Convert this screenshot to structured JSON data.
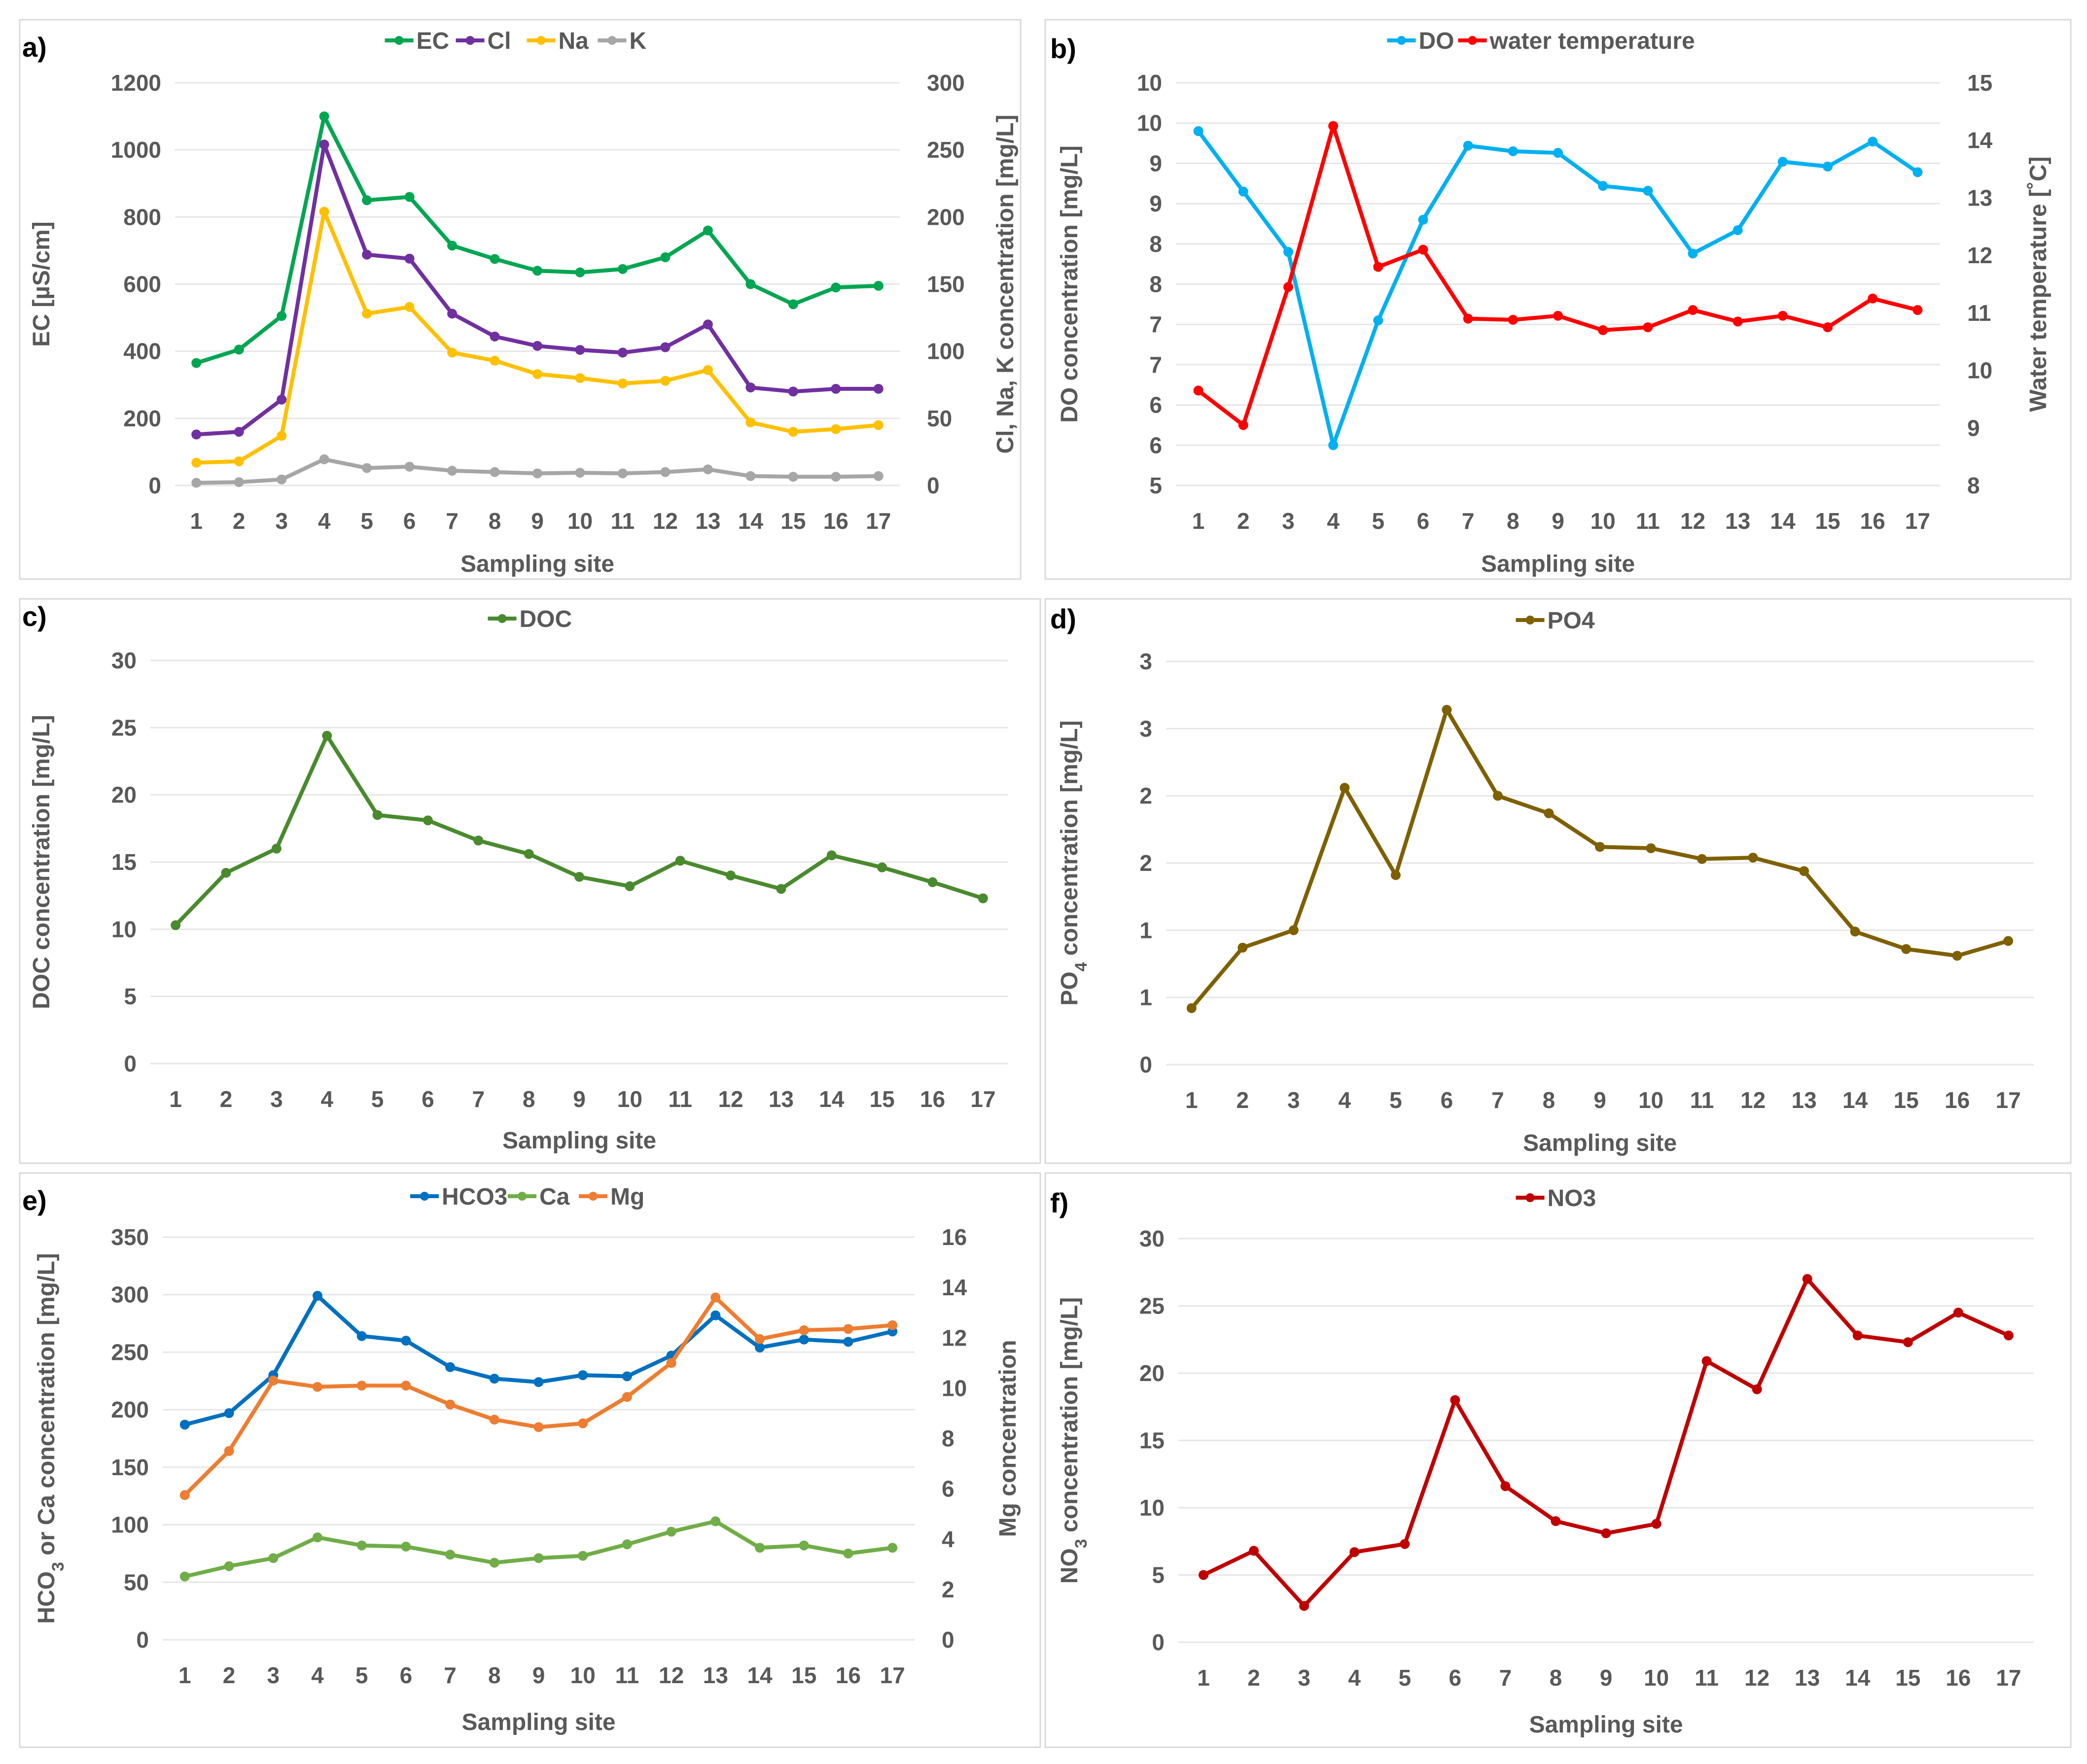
{
  "chart_data": [
    {
      "id": "a",
      "panel_label": "a)",
      "type": "line",
      "xlabel": "Sampling site",
      "ylabel": "EC [µS/cm]",
      "ylim": [
        0,
        1200
      ],
      "yticks": [
        0,
        200,
        400,
        600,
        800,
        1000,
        1200
      ],
      "y2label": "Cl, Na, K concentration [mg/L]",
      "y2lim": [
        0,
        300
      ],
      "y2ticks": [
        0,
        50,
        100,
        150,
        200,
        250,
        300
      ],
      "x": [
        1,
        2,
        3,
        4,
        5,
        6,
        7,
        8,
        9,
        10,
        11,
        12,
        13,
        14,
        15,
        16,
        17
      ],
      "series": [
        {
          "name": "EC",
          "color": "#00a651",
          "axis": "left",
          "values": [
            365,
            405,
            505,
            1100,
            850,
            860,
            715,
            675,
            640,
            635,
            645,
            680,
            760,
            600,
            540,
            590,
            595
          ]
        },
        {
          "name": "Cl",
          "color": "#7030a0",
          "axis": "right",
          "values": [
            38,
            40,
            64,
            254,
            172,
            169,
            128,
            111,
            104,
            101,
            99,
            103,
            120,
            73,
            70,
            72,
            72
          ]
        },
        {
          "name": "Na",
          "color": "#ffc000",
          "axis": "right",
          "values": [
            17,
            18,
            37,
            204,
            128,
            133,
            99,
            93,
            83,
            80,
            76,
            78,
            86,
            47,
            40,
            42,
            45
          ]
        },
        {
          "name": "K",
          "color": "#a6a6a6",
          "axis": "right",
          "values": [
            2,
            2.5,
            4.5,
            19.5,
            13,
            14,
            11,
            10,
            9,
            9.5,
            9,
            10,
            12,
            7,
            6.5,
            6.5,
            7
          ]
        }
      ]
    },
    {
      "id": "b",
      "panel_label": "b)",
      "type": "line",
      "xlabel": "Sampling site",
      "ylabel": "DO concentration [mg/L]",
      "ylim": [
        5,
        10
      ],
      "yticks": [
        5,
        5.5,
        6,
        6.5,
        7,
        7.5,
        8,
        8.5,
        9,
        9.5,
        10
      ],
      "ytick_labels": [
        "5",
        "6",
        "6",
        "7",
        "7",
        "8",
        "8",
        "9",
        "9",
        "10",
        "10"
      ],
      "y2label": "Water temperature [˚C]",
      "y2lim": [
        8,
        15
      ],
      "y2ticks": [
        8,
        9,
        10,
        11,
        12,
        13,
        14,
        15
      ],
      "x": [
        1,
        2,
        3,
        4,
        5,
        6,
        7,
        8,
        9,
        10,
        11,
        12,
        13,
        14,
        15,
        16,
        17
      ],
      "series": [
        {
          "name": "DO",
          "color": "#00b0f0",
          "axis": "left",
          "values": [
            9.4,
            8.65,
            7.9,
            5.5,
            7.05,
            8.3,
            9.22,
            9.15,
            9.13,
            8.72,
            8.66,
            7.88,
            8.17,
            9.02,
            8.96,
            9.27,
            8.89
          ]
        },
        {
          "name": "water temperature",
          "color": "#ff0000",
          "axis": "right",
          "values": [
            9.65,
            9.05,
            11.45,
            14.25,
            11.8,
            12.1,
            10.9,
            10.88,
            10.95,
            10.7,
            10.75,
            11.05,
            10.85,
            10.95,
            10.75,
            11.25,
            11.05
          ]
        }
      ]
    },
    {
      "id": "c",
      "panel_label": "c)",
      "type": "line",
      "xlabel": "Sampling site",
      "ylabel": "DOC concentration [mg/L]",
      "ylim": [
        0,
        30
      ],
      "yticks": [
        0,
        5,
        10,
        15,
        20,
        25,
        30
      ],
      "x": [
        1,
        2,
        3,
        4,
        5,
        6,
        7,
        8,
        9,
        10,
        11,
        12,
        13,
        14,
        15,
        16,
        17
      ],
      "series": [
        {
          "name": "DOC",
          "color": "#4a8a2f",
          "axis": "left",
          "values": [
            10.3,
            14.2,
            16,
            24.4,
            18.5,
            18.1,
            16.6,
            15.6,
            13.9,
            13.2,
            15.1,
            14,
            13,
            15.5,
            14.6,
            13.5,
            12.3
          ]
        }
      ]
    },
    {
      "id": "d",
      "panel_label": "d)",
      "type": "line",
      "xlabel": "Sampling site",
      "ylabel_main": "PO",
      "ylabel_sub": "4",
      "ylabel_rest": " concentration [mg/L]",
      "ylim": [
        0,
        3
      ],
      "yticks": [
        0,
        0.5,
        1,
        1.5,
        2,
        2.5,
        3
      ],
      "ytick_labels": [
        "0",
        "1",
        "1",
        "2",
        "2",
        "3",
        "3"
      ],
      "x": [
        1,
        2,
        3,
        4,
        5,
        6,
        7,
        8,
        9,
        10,
        11,
        12,
        13,
        14,
        15,
        16,
        17
      ],
      "series": [
        {
          "name": "PO4",
          "color": "#7f6000",
          "axis": "left",
          "values": [
            0.42,
            0.87,
            1.0,
            2.06,
            1.41,
            2.64,
            2.0,
            1.87,
            1.62,
            1.61,
            1.53,
            1.54,
            1.44,
            0.99,
            0.86,
            0.81,
            0.92
          ]
        }
      ]
    },
    {
      "id": "e",
      "panel_label": "e)",
      "type": "line",
      "xlabel": "Sampling site",
      "ylabel_main": "HCO",
      "ylabel_sub": "3",
      "ylabel_rest": " or Ca concentration [mg/L]",
      "ylim": [
        0,
        350
      ],
      "yticks": [
        0,
        50,
        100,
        150,
        200,
        250,
        300,
        350
      ],
      "y2label": "Mg concentration",
      "y2lim": [
        0,
        16
      ],
      "y2ticks": [
        0,
        2,
        4,
        6,
        8,
        10,
        12,
        14,
        16
      ],
      "x": [
        1,
        2,
        3,
        4,
        5,
        6,
        7,
        8,
        9,
        10,
        11,
        12,
        13,
        14,
        15,
        16,
        17
      ],
      "series": [
        {
          "name": "HCO3",
          "color": "#0070c0",
          "axis": "left",
          "values": [
            187,
            197,
            230,
            299,
            264,
            260,
            237,
            227,
            224,
            230,
            229,
            247,
            282,
            254,
            261,
            259,
            268
          ]
        },
        {
          "name": "Ca",
          "color": "#70ad47",
          "axis": "left",
          "values": [
            55,
            64,
            71,
            89,
            82,
            81,
            74,
            67,
            71,
            73,
            83,
            94,
            103,
            80,
            82,
            75,
            80
          ]
        },
        {
          "name": "Mg",
          "color": "#ed7d31",
          "axis": "right",
          "values": [
            5.75,
            7.5,
            10.3,
            10.05,
            10.1,
            10.1,
            9.35,
            8.75,
            8.45,
            8.6,
            9.65,
            11,
            13.6,
            11.95,
            12.3,
            12.35,
            12.5
          ]
        }
      ]
    },
    {
      "id": "f",
      "panel_label": "f)",
      "type": "line",
      "xlabel": "Sampling site",
      "ylabel_main": "NO",
      "ylabel_sub": "3",
      "ylabel_rest": " concentration [mg/L]",
      "ylim": [
        0,
        30
      ],
      "yticks": [
        0,
        5,
        10,
        15,
        20,
        25,
        30
      ],
      "x": [
        1,
        2,
        3,
        4,
        5,
        6,
        7,
        8,
        9,
        10,
        11,
        12,
        13,
        14,
        15,
        16,
        17
      ],
      "series": [
        {
          "name": "NO3",
          "color": "#c00000",
          "axis": "left",
          "values": [
            5,
            6.8,
            2.7,
            6.7,
            7.3,
            18,
            11.6,
            9,
            8.1,
            8.8,
            20.9,
            18.8,
            27,
            22.8,
            22.3,
            24.5,
            22.8
          ]
        }
      ]
    }
  ]
}
